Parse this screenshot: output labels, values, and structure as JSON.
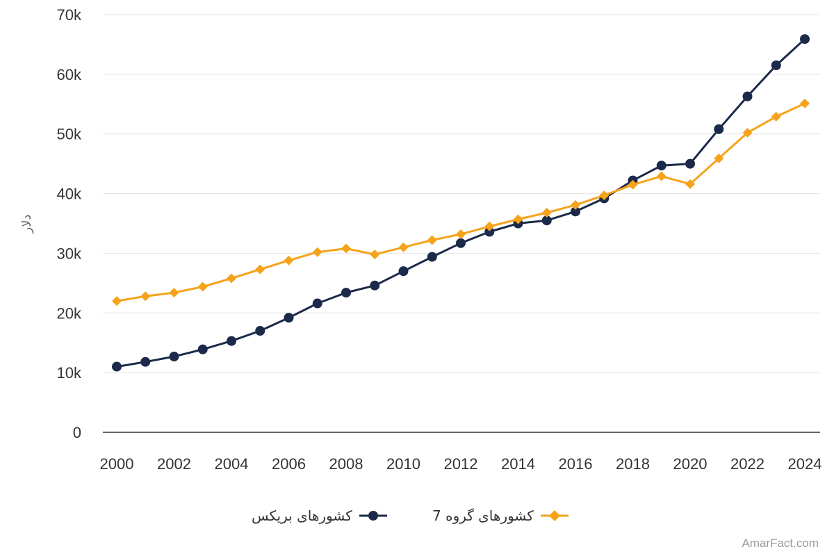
{
  "chart_data": {
    "type": "line",
    "ylabel": "دلار",
    "yticks": [
      "0",
      "10k",
      "20k",
      "30k",
      "40k",
      "50k",
      "60k",
      "70k"
    ],
    "ylim": [
      0,
      70000
    ],
    "grid": true,
    "legend_position": "bottom",
    "x": [
      2000,
      2001,
      2002,
      2003,
      2004,
      2005,
      2006,
      2007,
      2008,
      2009,
      2010,
      2011,
      2012,
      2013,
      2014,
      2015,
      2016,
      2017,
      2018,
      2019,
      2020,
      2021,
      2022,
      2023,
      2024
    ],
    "xticks": [
      "2000",
      "2002",
      "2004",
      "2006",
      "2008",
      "2010",
      "2012",
      "2014",
      "2016",
      "2018",
      "2020",
      "2022",
      "2024"
    ],
    "series": [
      {
        "name": "کشورهای بریکس",
        "color": "#1b2a4a",
        "marker": "circle",
        "values": [
          11000,
          11800,
          12700,
          13900,
          15300,
          17000,
          19200,
          21600,
          23400,
          24600,
          27000,
          29400,
          31700,
          33600,
          35000,
          35500,
          37000,
          39200,
          42200,
          44700,
          45000,
          50800,
          56300,
          61500,
          65900
        ]
      },
      {
        "name": "کشورهای گروه 7",
        "color": "#f5a31a",
        "marker": "diamond",
        "values": [
          22000,
          22800,
          23400,
          24400,
          25800,
          27300,
          28800,
          30200,
          30800,
          29800,
          31000,
          32200,
          33200,
          34500,
          35700,
          36800,
          38100,
          39700,
          41500,
          42900,
          41600,
          45900,
          50200,
          52900,
          55100
        ]
      }
    ]
  },
  "watermark": "AmarFact.com"
}
